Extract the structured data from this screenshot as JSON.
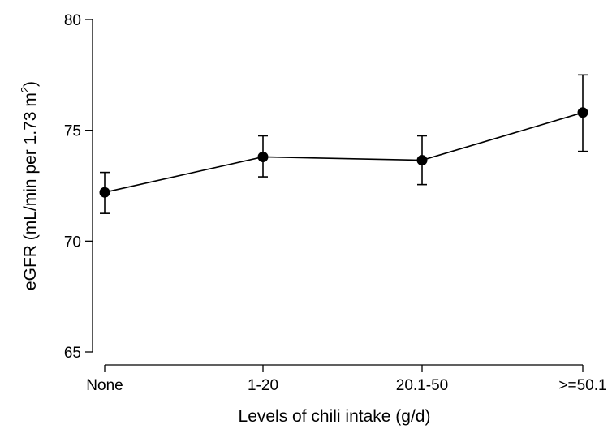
{
  "chart_data": {
    "type": "line",
    "title": "",
    "categories": [
      "None",
      "1-20",
      "20.1-50",
      ">=50.1"
    ],
    "series": [
      {
        "values": [
          72.2,
          73.8,
          73.65,
          75.8
        ],
        "error_low": [
          71.25,
          72.9,
          72.55,
          74.05
        ],
        "error_high": [
          73.1,
          74.75,
          74.75,
          77.5
        ],
        "color": "#000000"
      }
    ],
    "xlabel": "Levels of chili intake (g/d)",
    "ylabel_prefix": "eGFR (mL/min per 1.73 m",
    "ylabel_superscript": "2",
    "ylabel_suffix": ")",
    "ylim": [
      65,
      80
    ],
    "yticks": [
      65,
      70,
      75,
      80
    ],
    "grid": false
  }
}
